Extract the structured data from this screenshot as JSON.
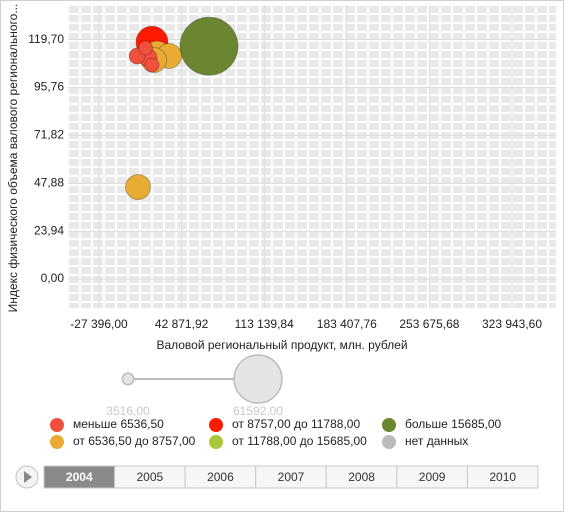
{
  "chart_data": {
    "type": "bubble",
    "ylabel": "Индекс физического объема валового регионального...",
    "xlabel": "Валовой региональный продукт, млн. рублей",
    "xlim": [
      -53770,
      361370
    ],
    "ylim": [
      -14.5,
      137
    ],
    "xticks": [
      {
        "value": -27396,
        "label": "-27 396,00"
      },
      {
        "value": 42871.92,
        "label": "42 871,92"
      },
      {
        "value": 113139.84,
        "label": "113 139,84"
      },
      {
        "value": 183407.76,
        "label": "183 407,76"
      },
      {
        "value": 253675.68,
        "label": "253 675,68"
      },
      {
        "value": 323943.6,
        "label": "323 943,60"
      }
    ],
    "yticks": [
      {
        "value": 0,
        "label": "0,00"
      },
      {
        "value": 23.94,
        "label": "23,94"
      },
      {
        "value": 47.88,
        "label": "47,88"
      },
      {
        "value": 71.82,
        "label": "71,82"
      },
      {
        "value": 95.76,
        "label": "95,76"
      },
      {
        "value": 119.7,
        "label": "119,70"
      }
    ],
    "grid": true,
    "series": [
      {
        "name": "меньше 6536,50",
        "color": "#f0503c",
        "x": [
          5000,
          14350,
          17750,
          12150
        ],
        "values": [
          111.5,
          110.5,
          107,
          115.5
        ],
        "sizes": [
          4690,
          5930,
          3590,
          3590
        ]
      },
      {
        "name": "от 6536,50 до 8757,00",
        "color": "#e8ac34",
        "x": [
          21930,
          32140,
          19380,
          5780
        ],
        "values": [
          112,
          111.5,
          109.5,
          46
        ],
        "sizes": [
          14350,
          11530,
          11530,
          11530
        ]
      },
      {
        "name": "от 8757,00 до 11788,00",
        "color": "#ff1a00",
        "x": [
          17690
        ],
        "values": [
          118.4
        ],
        "sizes": [
          18750
        ]
      },
      {
        "name": "от 11788,00 до 15685,00",
        "color": "#a8c83c",
        "x": [],
        "values": [],
        "sizes": []
      },
      {
        "name": "больше 15685,00",
        "color": "#6b8530",
        "x": [
          66180
        ],
        "values": [
          116.4
        ],
        "sizes": [
          61592
        ]
      },
      {
        "name": "нет данных",
        "color": "#bbbbbb",
        "x": [],
        "values": [],
        "sizes": []
      }
    ],
    "size_legend": [
      {
        "value": 3516,
        "label": "3516,00"
      },
      {
        "value": 61592,
        "label": "61592,00"
      }
    ],
    "timeline": {
      "years": [
        "2004",
        "2005",
        "2006",
        "2007",
        "2008",
        "2009",
        "2010"
      ],
      "selected": 0
    }
  }
}
